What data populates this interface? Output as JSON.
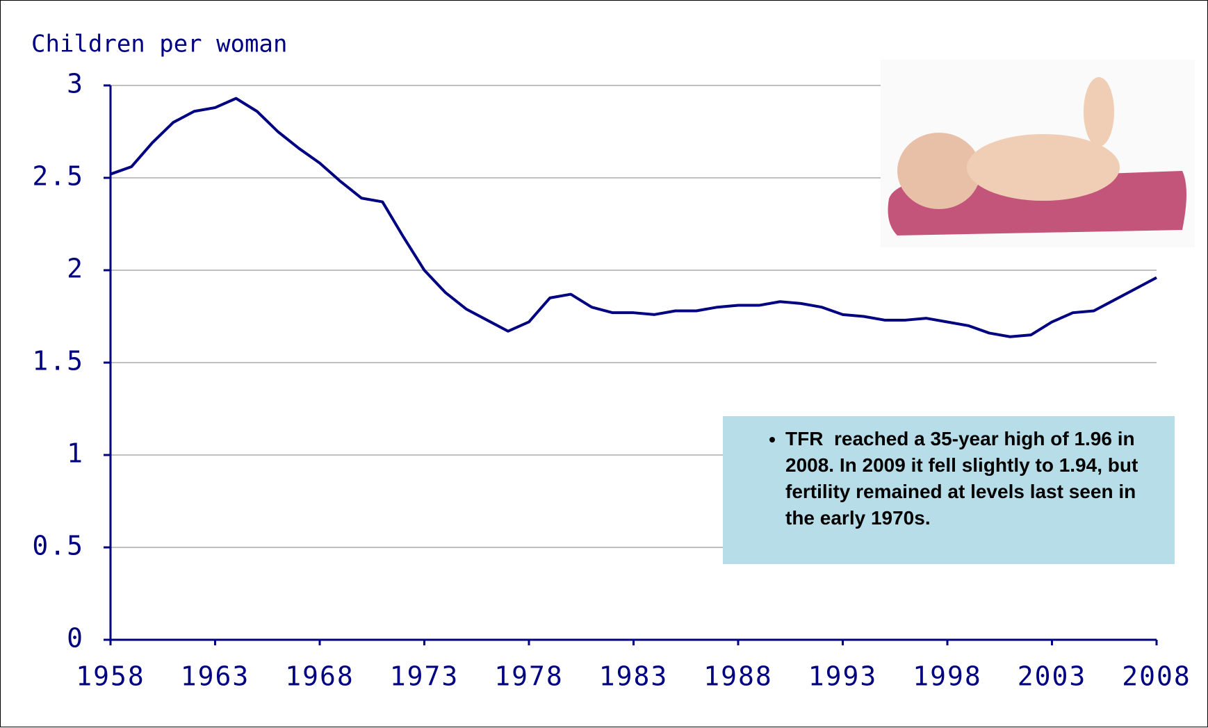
{
  "chart_data": {
    "type": "line",
    "y_axis_label": "Children per woman",
    "x": [
      1958,
      1959,
      1960,
      1961,
      1962,
      1963,
      1964,
      1965,
      1966,
      1967,
      1968,
      1969,
      1970,
      1971,
      1972,
      1973,
      1974,
      1975,
      1976,
      1977,
      1978,
      1979,
      1980,
      1981,
      1982,
      1983,
      1984,
      1985,
      1986,
      1987,
      1988,
      1989,
      1990,
      1991,
      1992,
      1993,
      1994,
      1995,
      1996,
      1997,
      1998,
      1999,
      2000,
      2001,
      2002,
      2003,
      2004,
      2005,
      2006,
      2007,
      2008
    ],
    "series": [
      {
        "color": "#000080",
        "values": [
          2.52,
          2.56,
          2.69,
          2.8,
          2.86,
          2.88,
          2.93,
          2.86,
          2.75,
          2.66,
          2.58,
          2.48,
          2.39,
          2.37,
          2.18,
          2.0,
          1.88,
          1.79,
          1.73,
          1.67,
          1.72,
          1.85,
          1.87,
          1.8,
          1.77,
          1.77,
          1.76,
          1.78,
          1.78,
          1.8,
          1.81,
          1.81,
          1.83,
          1.82,
          1.8,
          1.76,
          1.75,
          1.73,
          1.73,
          1.74,
          1.72,
          1.7,
          1.66,
          1.64,
          1.65,
          1.72,
          1.77,
          1.78,
          1.84,
          1.9,
          1.96
        ]
      }
    ],
    "xlim": [
      1958,
      2008
    ],
    "xticks": [
      1958,
      1963,
      1968,
      1973,
      1978,
      1983,
      1988,
      1993,
      1998,
      2003,
      2008
    ],
    "ylim": [
      0,
      3
    ],
    "yticks": [
      0,
      0.5,
      1,
      1.5,
      2,
      2.5,
      3
    ],
    "grid": true,
    "annotation": "TFR  reached a 35-year high of 1.96 in 2008. In 2009 it fell slightly to 1.94, but fertility remained at levels last seen in the early 1970s."
  }
}
